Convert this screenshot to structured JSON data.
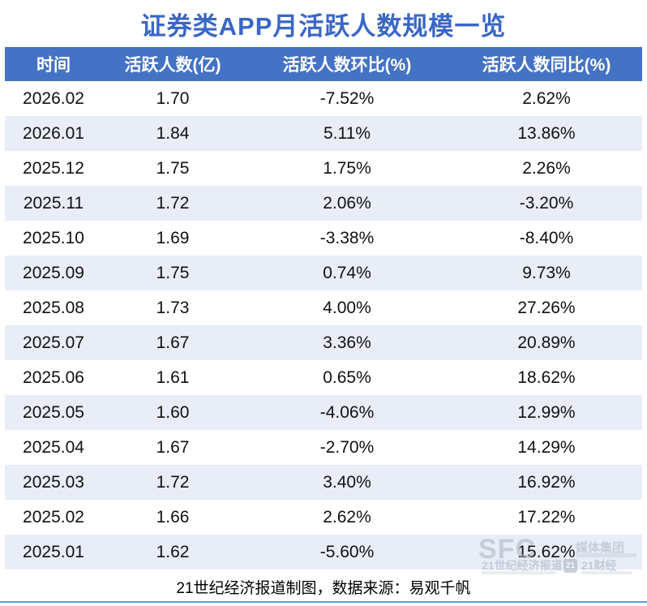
{
  "title": "证券类APP月活跃人数规模一览",
  "chart_data": {
    "type": "table",
    "title": "证券类APP月活跃人数规模一览",
    "columns": [
      "时间",
      "活跃人数(亿)",
      "活跃人数环比(%)",
      "活跃人数同比(%)"
    ],
    "rows": [
      [
        "2026.02",
        "1.70",
        "-7.52%",
        "2.62%"
      ],
      [
        "2026.01",
        "1.84",
        "5.11%",
        "13.86%"
      ],
      [
        "2025.12",
        "1.75",
        "1.75%",
        "2.26%"
      ],
      [
        "2025.11",
        "1.72",
        "2.06%",
        "-3.20%"
      ],
      [
        "2025.10",
        "1.69",
        "-3.38%",
        "-8.40%"
      ],
      [
        "2025.09",
        "1.75",
        "0.74%",
        "9.73%"
      ],
      [
        "2025.08",
        "1.73",
        "4.00%",
        "27.26%"
      ],
      [
        "2025.07",
        "1.67",
        "3.36%",
        "20.89%"
      ],
      [
        "2025.06",
        "1.61",
        "0.65%",
        "18.62%"
      ],
      [
        "2025.05",
        "1.60",
        "-4.06%",
        "12.99%"
      ],
      [
        "2025.04",
        "1.67",
        "-2.70%",
        "14.29%"
      ],
      [
        "2025.03",
        "1.72",
        "3.40%",
        "16.92%"
      ],
      [
        "2025.02",
        "1.66",
        "2.62%",
        "17.22%"
      ],
      [
        "2025.01",
        "1.62",
        "-5.60%",
        "15.62%"
      ]
    ]
  },
  "footer": "21世纪经济报道制图，数据来源：易观千帆",
  "watermark": {
    "sfc": "SFC",
    "group_suffix": "媒体集团",
    "brand1": "21世纪经济报道",
    "badge": "21",
    "brand2": "21财经"
  },
  "colors": {
    "header_bg": "#4472C4",
    "title_color": "#3A67C6",
    "stripe": "#E9EDF7",
    "bottom_line": "#5B9BD5",
    "watermark_gray": "#AAB2C2"
  }
}
